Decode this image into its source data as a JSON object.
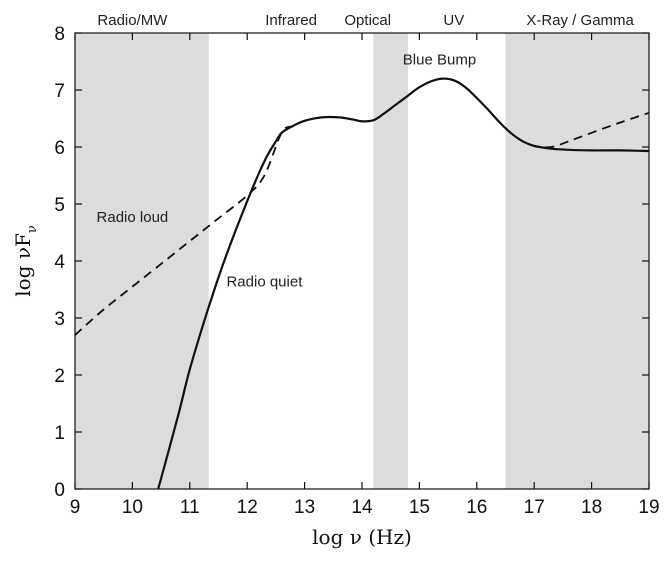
{
  "chart_data": {
    "type": "line",
    "xlabel": "log ν (Hz)",
    "ylabel": "log νF",
    "ylabel_sub": "ν",
    "xlim": [
      9,
      19
    ],
    "ylim": [
      0,
      8
    ],
    "xticks": [
      9,
      10,
      11,
      12,
      13,
      14,
      15,
      16,
      17,
      18,
      19
    ],
    "yticks": [
      0,
      1,
      2,
      3,
      4,
      5,
      6,
      7,
      8
    ],
    "grid": false,
    "bands": [
      {
        "label": "Radio/MW",
        "x_range": [
          9,
          11.33
        ],
        "shaded": true
      },
      {
        "label": "Infrared",
        "x_range": [
          11.33,
          14.2
        ],
        "shaded": false
      },
      {
        "label": "Optical",
        "x_range": [
          14.2,
          14.8
        ],
        "shaded": true
      },
      {
        "label": "UV",
        "x_range": [
          14.8,
          16.5
        ],
        "shaded": false
      },
      {
        "label": "X-Ray / Gamma",
        "x_range": [
          16.5,
          19
        ],
        "shaded": true
      }
    ],
    "band_colors": {
      "shaded": "#dcdcdc"
    },
    "series": [
      {
        "name": "Radio quiet",
        "style": "solid",
        "x": [
          10.45,
          10.8,
          11.0,
          11.3,
          11.6,
          12.0,
          12.3,
          12.5,
          12.6,
          12.8,
          13.0,
          13.3,
          13.6,
          13.85,
          14.0,
          14.2,
          14.4,
          14.6,
          14.8,
          15.0,
          15.2,
          15.4,
          15.6,
          15.8,
          16.0,
          16.2,
          16.4,
          16.6,
          16.8,
          17.0,
          17.3,
          17.6,
          18.0,
          18.5,
          19.0
        ],
        "y": [
          0.0,
          1.3,
          2.1,
          3.1,
          4.0,
          5.05,
          5.75,
          6.1,
          6.25,
          6.37,
          6.46,
          6.52,
          6.52,
          6.48,
          6.45,
          6.47,
          6.6,
          6.75,
          6.9,
          7.05,
          7.15,
          7.2,
          7.17,
          7.05,
          6.86,
          6.65,
          6.43,
          6.24,
          6.1,
          6.02,
          5.97,
          5.95,
          5.94,
          5.94,
          5.93
        ]
      },
      {
        "name": "Radio loud",
        "style": "dashed",
        "x": [
          9.0,
          9.5,
          10.0,
          10.5,
          11.0,
          11.5,
          12.0,
          12.3,
          12.6,
          12.8,
          13.0,
          13.3,
          13.6,
          13.85,
          14.0,
          14.2,
          14.4,
          14.6,
          14.8,
          15.0,
          15.2,
          15.4,
          15.6,
          15.8,
          16.0,
          16.2,
          16.4,
          16.6,
          16.8,
          17.0,
          17.3,
          17.6,
          18.0,
          18.5,
          19.0
        ],
        "y": [
          2.7,
          3.15,
          3.55,
          3.95,
          4.35,
          4.75,
          5.15,
          5.5,
          6.25,
          6.37,
          6.46,
          6.52,
          6.52,
          6.48,
          6.45,
          6.47,
          6.6,
          6.75,
          6.9,
          7.05,
          7.15,
          7.2,
          7.17,
          7.05,
          6.86,
          6.65,
          6.43,
          6.24,
          6.1,
          6.02,
          6.0,
          6.1,
          6.25,
          6.43,
          6.6
        ]
      }
    ],
    "annotations": [
      {
        "text": "Radio loud",
        "x": 10.0,
        "y": 4.68
      },
      {
        "text": "Radio quiet",
        "x": 12.3,
        "y": 3.55
      },
      {
        "text": "Blue Bump",
        "x": 15.35,
        "y": 7.45
      }
    ]
  }
}
